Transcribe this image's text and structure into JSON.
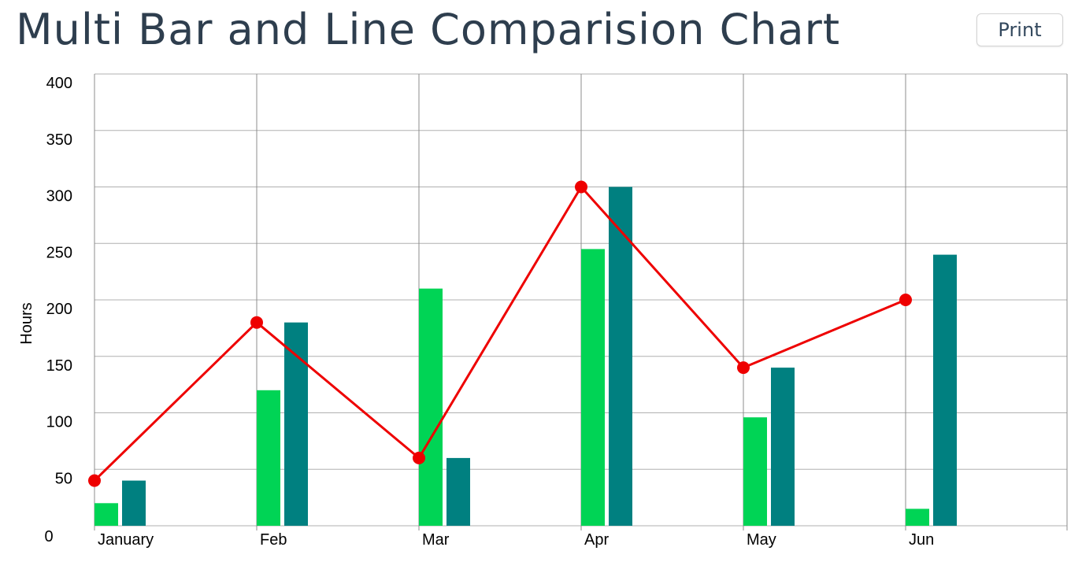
{
  "page": {
    "title": "Multi Bar and Line Comparision Chart",
    "print_label": "Print"
  },
  "chart_data": {
    "type": "bar",
    "title": "Multi Bar and Line Comparision Chart",
    "xlabel": "",
    "ylabel": "Hours",
    "categories": [
      "January",
      "Feb",
      "Mar",
      "Apr",
      "May",
      "Jun"
    ],
    "ylim": [
      0,
      400
    ],
    "yticks": [
      0,
      50,
      100,
      150,
      200,
      250,
      300,
      350,
      400
    ],
    "grid": true,
    "legend": "none",
    "series": [
      {
        "kind": "bar",
        "color": "#00d455",
        "values": [
          20,
          120,
          210,
          245,
          96,
          15
        ]
      },
      {
        "kind": "bar",
        "color": "#008080",
        "values": [
          40,
          180,
          60,
          300,
          140,
          240
        ]
      },
      {
        "kind": "line",
        "color": "#ee0000",
        "values": [
          40,
          180,
          60,
          300,
          140,
          200
        ]
      }
    ]
  }
}
